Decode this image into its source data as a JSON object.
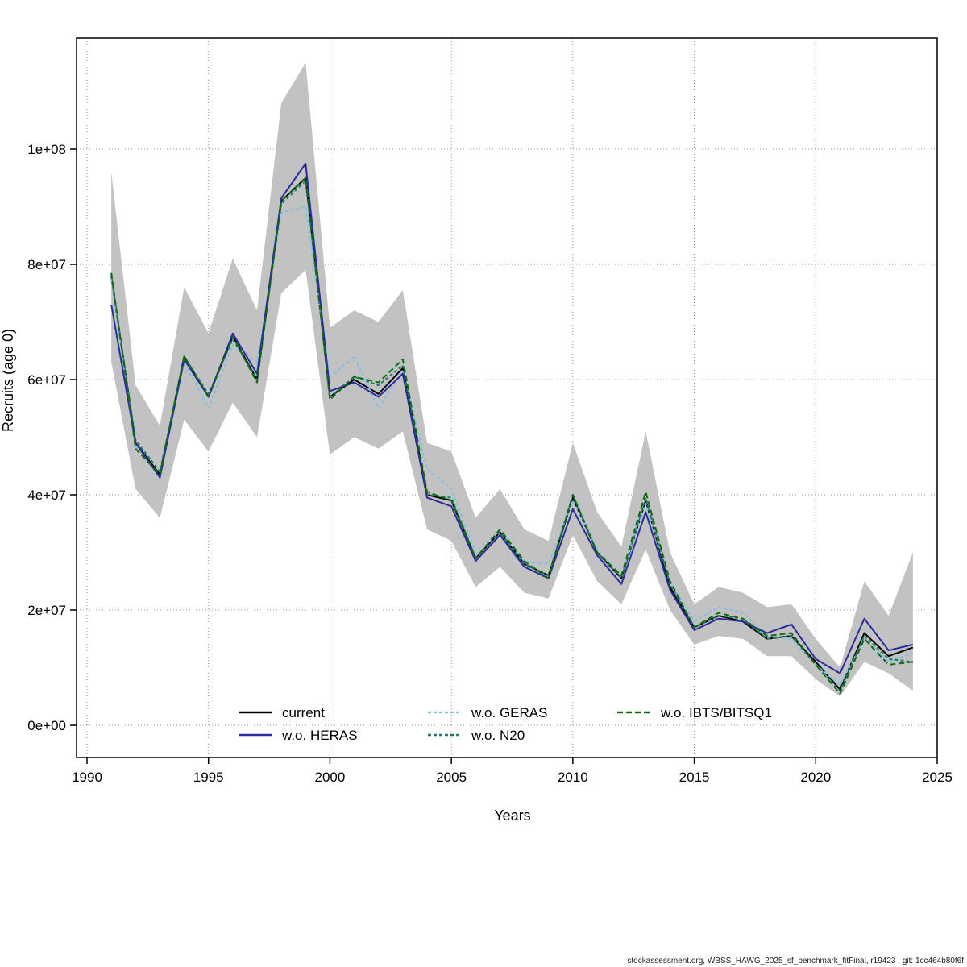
{
  "page": {
    "footer": "stockassessment.org, WBSS_HAWG_2025_sf_benchmark_fitFinal, r19423 , git: 1cc464b80f6f"
  },
  "chart_data": {
    "type": "line",
    "title": "",
    "xlabel": "Years",
    "ylabel": "Recruits (age 0)",
    "xlim": [
      1990,
      2025
    ],
    "ylim": [
      0,
      115000000.0
    ],
    "grid": true,
    "legend_position": "bottom-center-inside",
    "x_ticks": [
      1990,
      1995,
      2000,
      2005,
      2010,
      2015,
      2020,
      2025
    ],
    "y_ticks": [
      0,
      20000000.0,
      40000000.0,
      60000000.0,
      80000000.0,
      100000000.0
    ],
    "y_tick_labels": [
      "0e+00",
      "2e+07",
      "4e+07",
      "6e+07",
      "8e+07",
      "1e+08"
    ],
    "years": [
      1991,
      1992,
      1993,
      1994,
      1995,
      1996,
      1997,
      1998,
      1999,
      2000,
      2001,
      2002,
      2003,
      2004,
      2005,
      2006,
      2007,
      2008,
      2009,
      2010,
      2011,
      2012,
      2013,
      2014,
      2015,
      2016,
      2017,
      2018,
      2019,
      2020,
      2021,
      2022,
      2023,
      2024
    ],
    "confidence_band": {
      "name": "95% confidence interval (current)",
      "color": "#c2c2c2",
      "upper": [
        96000000.0,
        59000000.0,
        52000000.0,
        76000000.0,
        68000000.0,
        81000000.0,
        72000000.0,
        108000000.0,
        115000000.0,
        69000000.0,
        72000000.0,
        70000000.0,
        75500000.0,
        49000000.0,
        47500000.0,
        36000000.0,
        41000000.0,
        34000000.0,
        32000000.0,
        49000000.0,
        37000000.0,
        31000000.0,
        51000000.0,
        30000000.0,
        21000000.0,
        24000000.0,
        23000000.0,
        20500000.0,
        21000000.0,
        15000000.0,
        10000000.0,
        25000000.0,
        19000000.0,
        30000000.0
      ],
      "lower": [
        63000000.0,
        41000000.0,
        36000000.0,
        53000000.0,
        47500000.0,
        56000000.0,
        50000000.0,
        75000000.0,
        79000000.0,
        47000000.0,
        50000000.0,
        48000000.0,
        51000000.0,
        34000000.0,
        32000000.0,
        24000000.0,
        27500000.0,
        23000000.0,
        22000000.0,
        33000000.0,
        25000000.0,
        21000000.0,
        30500000.0,
        20000000.0,
        14000000.0,
        15500000.0,
        15000000.0,
        12000000.0,
        12000000.0,
        8000000.0,
        5000000.0,
        11000000.0,
        9000000.0,
        6000000.0
      ]
    },
    "series": [
      {
        "name": "current",
        "color": "#000000",
        "dash": "solid",
        "values": [
          78000000.0,
          49000000.0,
          43500000.0,
          64000000.0,
          57000000.0,
          67500000.0,
          60000000.0,
          91000000.0,
          95000000.0,
          57000000.0,
          60000000.0,
          57500000.0,
          62000000.0,
          40000000.0,
          39000000.0,
          29000000.0,
          33500000.0,
          28000000.0,
          26000000.0,
          39500000.0,
          30000000.0,
          25500000.0,
          39000000.0,
          24000000.0,
          17000000.0,
          19000000.0,
          18000000.0,
          15000000.0,
          15500000.0,
          11000000.0,
          6200000.0,
          16000000.0,
          12000000.0,
          13500000.0
        ]
      },
      {
        "name": "w.o. HERAS",
        "color": "#2b2b9c",
        "dash": "solid",
        "values": [
          73000000.0,
          49000000.0,
          43000000.0,
          63500000.0,
          57000000.0,
          68000000.0,
          61000000.0,
          91500000.0,
          97500000.0,
          58000000.0,
          59500000.0,
          57000000.0,
          61000000.0,
          39500000.0,
          38000000.0,
          28500000.0,
          33000000.0,
          27500000.0,
          25500000.0,
          37500000.0,
          29500000.0,
          24500000.0,
          37000000.0,
          23500000.0,
          16500000.0,
          18500000.0,
          18000000.0,
          16000000.0,
          17500000.0,
          11500000.0,
          9000000.0,
          18500000.0,
          13000000.0,
          14000000.0
        ]
      },
      {
        "name": "w.o. GERAS",
        "color": "#82c0e2",
        "dash": "fine-dash",
        "values": [
          77500000.0,
          48500000.0,
          43000000.0,
          63000000.0,
          55000000.0,
          66000000.0,
          63000000.0,
          89000000.0,
          90000000.0,
          60500000.0,
          64000000.0,
          55000000.0,
          61500000.0,
          44500000.0,
          41000000.0,
          30000000.0,
          34000000.0,
          28500000.0,
          28000000.0,
          39000000.0,
          30500000.0,
          26000000.0,
          38500000.0,
          25000000.0,
          18000000.0,
          20500000.0,
          19500000.0,
          15500000.0,
          15000000.0,
          10500000.0,
          7000000.0,
          15000000.0,
          11000000.0,
          12500000.0
        ]
      },
      {
        "name": "w.o. N20",
        "color": "#1f7a6e",
        "dash": "fine-dash",
        "values": [
          78000000.0,
          49500000.0,
          44000000.0,
          64000000.0,
          57500000.0,
          67000000.0,
          60000000.0,
          90500000.0,
          94500000.0,
          57000000.0,
          60500000.0,
          59000000.0,
          62500000.0,
          40000000.0,
          39500000.0,
          29000000.0,
          33500000.0,
          28000000.0,
          26000000.0,
          40000000.0,
          30000000.0,
          25500000.0,
          39500000.0,
          24500000.0,
          17000000.0,
          19000000.0,
          18500000.0,
          15000000.0,
          15500000.0,
          10500000.0,
          6000000.0,
          15500000.0,
          11500000.0,
          11000000.0
        ]
      },
      {
        "name": "w.o. IBTS/BITSQ1",
        "color": "#0f6b0f",
        "dash": "dash",
        "values": [
          78500000.0,
          48000000.0,
          43500000.0,
          64000000.0,
          57000000.0,
          67500000.0,
          59500000.0,
          91000000.0,
          95000000.0,
          56500000.0,
          60500000.0,
          59500000.0,
          63500000.0,
          40500000.0,
          39000000.0,
          29000000.0,
          34000000.0,
          28500000.0,
          25500000.0,
          40000000.0,
          30000000.0,
          26000000.0,
          40500000.0,
          25000000.0,
          17000000.0,
          19500000.0,
          18500000.0,
          15500000.0,
          16000000.0,
          10500000.0,
          5500000.0,
          15000000.0,
          10500000.0,
          11000000.0
        ]
      }
    ]
  }
}
